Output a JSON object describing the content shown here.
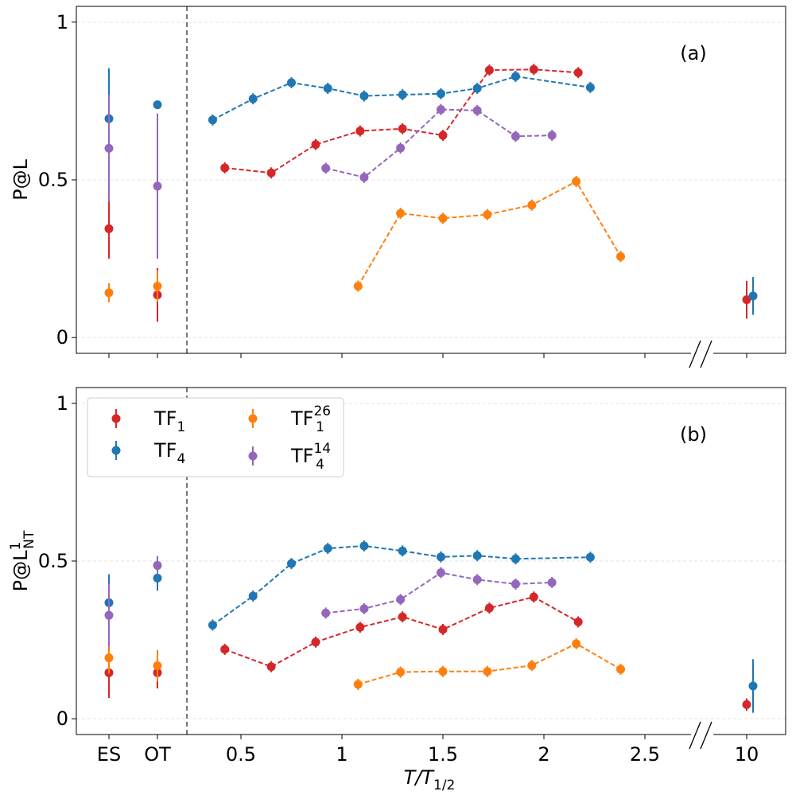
{
  "chart_data": [
    {
      "type": "scatter",
      "panel": "(a)",
      "ylabel": "P@L",
      "xlabel": "",
      "ylim": [
        -0.05,
        1.05
      ],
      "yticks": [
        0,
        0.5,
        1
      ],
      "ytick_labels": [
        "0",
        "0.5",
        "1"
      ],
      "x_tick_positions": [
        "ES",
        "OT",
        0.5,
        1,
        1.5,
        2,
        2.5,
        10
      ],
      "grid": true,
      "series": [
        {
          "name": "TF_1",
          "color": "#d62728",
          "baselines": [
            {
              "x": "ES",
              "y": 0.345,
              "yerr": 0.095
            },
            {
              "x": "OT",
              "y": 0.135,
              "yerr": 0.085
            }
          ],
          "curve": [
            [
              0.42,
              0.538
            ],
            [
              0.65,
              0.522
            ],
            [
              0.87,
              0.612
            ],
            [
              1.09,
              0.655
            ],
            [
              1.3,
              0.662
            ],
            [
              1.5,
              0.641
            ],
            [
              1.73,
              0.848
            ],
            [
              1.95,
              0.85
            ],
            [
              2.17,
              0.84
            ]
          ],
          "far": {
            "x": 10,
            "y": 0.12,
            "yerr": 0.06
          }
        },
        {
          "name": "TF_4",
          "color": "#1f77b4",
          "baselines": [
            {
              "x": "ES",
              "y": 0.694,
              "yerr": 0.16
            },
            {
              "x": "OT",
              "y": 0.738,
              "yerr": 0
            }
          ],
          "curve": [
            [
              0.36,
              0.69
            ],
            [
              0.56,
              0.757
            ],
            [
              0.75,
              0.808
            ],
            [
              0.93,
              0.79
            ],
            [
              1.11,
              0.766
            ],
            [
              1.3,
              0.77
            ],
            [
              1.49,
              0.773
            ],
            [
              1.67,
              0.79
            ],
            [
              1.86,
              0.828
            ],
            [
              2.23,
              0.793
            ]
          ],
          "far": {
            "x": 10,
            "y": 0.132,
            "yerr": 0.06
          }
        },
        {
          "name": "TF_1^26",
          "color": "#ff7f0e",
          "baselines": [
            {
              "x": "ES",
              "y": 0.142,
              "yerr": 0.03
            },
            {
              "x": "OT",
              "y": 0.163,
              "yerr": 0.05
            }
          ],
          "curve": [
            [
              1.08,
              0.163
            ],
            [
              1.29,
              0.394
            ],
            [
              1.5,
              0.378
            ],
            [
              1.72,
              0.39
            ],
            [
              1.94,
              0.42
            ],
            [
              2.16,
              0.495
            ],
            [
              2.38,
              0.257
            ]
          ],
          "far": null
        },
        {
          "name": "TF_4^14",
          "color": "#9467bd",
          "baselines": [
            {
              "x": "ES",
              "y": 0.6,
              "yerr": 0.17
            },
            {
              "x": "OT",
              "y": 0.48,
              "yerr": 0.23
            }
          ],
          "curve": [
            [
              0.92,
              0.537
            ],
            [
              1.11,
              0.508
            ],
            [
              1.29,
              0.601
            ],
            [
              1.49,
              0.723
            ],
            [
              1.67,
              0.72
            ],
            [
              1.86,
              0.638
            ],
            [
              2.04,
              0.641
            ]
          ],
          "far": null
        }
      ]
    },
    {
      "type": "scatter",
      "panel": "(b)",
      "ylabel": "P@L",
      "ylabel_sup": "1",
      "ylabel_sub": "NT",
      "xlabel": "T/T",
      "xlabel_sub": "1/2",
      "ylim": [
        -0.05,
        1.05
      ],
      "yticks": [
        0,
        0.5,
        1
      ],
      "ytick_labels": [
        "0",
        "0.5",
        "1"
      ],
      "xtick_labels": [
        "ES",
        "OT",
        "0.5",
        "1",
        "1.5",
        "2",
        "2.5",
        "10"
      ],
      "grid": true,
      "legend": {
        "placement": "top-left",
        "entries": [
          {
            "base": "TF",
            "sub": "1",
            "sup": "",
            "color": "#d62728"
          },
          {
            "base": "TF",
            "sub": "4",
            "sup": "",
            "color": "#1f77b4"
          },
          {
            "base": "TF",
            "sub": "1",
            "sup": "26",
            "color": "#ff7f0e"
          },
          {
            "base": "TF",
            "sub": "4",
            "sup": "14",
            "color": "#9467bd"
          }
        ]
      },
      "series": [
        {
          "name": "TF_1",
          "color": "#d62728",
          "baselines": [
            {
              "x": "ES",
              "y": 0.146,
              "yerr": 0.08
            },
            {
              "x": "OT",
              "y": 0.146,
              "yerr": 0.05
            }
          ],
          "curve": [
            [
              0.42,
              0.22
            ],
            [
              0.65,
              0.165
            ],
            [
              0.87,
              0.243
            ],
            [
              1.09,
              0.29
            ],
            [
              1.3,
              0.323
            ],
            [
              1.5,
              0.283
            ],
            [
              1.73,
              0.351
            ],
            [
              1.95,
              0.386
            ],
            [
              2.17,
              0.307
            ]
          ],
          "far": {
            "x": 10,
            "y": 0.045,
            "yerr": 0.02
          }
        },
        {
          "name": "TF_4",
          "color": "#1f77b4",
          "baselines": [
            {
              "x": "ES",
              "y": 0.368,
              "yerr": 0.09
            },
            {
              "x": "OT",
              "y": 0.446,
              "yerr": 0.04
            }
          ],
          "curve": [
            [
              0.36,
              0.297
            ],
            [
              0.56,
              0.389
            ],
            [
              0.75,
              0.492
            ],
            [
              0.93,
              0.54
            ],
            [
              1.11,
              0.548
            ],
            [
              1.3,
              0.532
            ],
            [
              1.49,
              0.513
            ],
            [
              1.67,
              0.517
            ],
            [
              1.86,
              0.507
            ],
            [
              2.23,
              0.512
            ]
          ],
          "far": {
            "x": 10,
            "y": 0.104,
            "yerr": 0.085
          }
        },
        {
          "name": "TF_1^26",
          "color": "#ff7f0e",
          "baselines": [
            {
              "x": "ES",
              "y": 0.193,
              "yerr": 0.05
            },
            {
              "x": "OT",
              "y": 0.168,
              "yerr": 0.05
            }
          ],
          "curve": [
            [
              1.08,
              0.109
            ],
            [
              1.29,
              0.148
            ],
            [
              1.5,
              0.15
            ],
            [
              1.72,
              0.15
            ],
            [
              1.94,
              0.169
            ],
            [
              2.16,
              0.238
            ],
            [
              2.38,
              0.157
            ]
          ],
          "far": null
        },
        {
          "name": "TF_4^14",
          "color": "#9467bd",
          "baselines": [
            {
              "x": "ES",
              "y": 0.328,
              "yerr": 0.1
            },
            {
              "x": "OT",
              "y": 0.486,
              "yerr": 0.03
            }
          ],
          "curve": [
            [
              0.92,
              0.335
            ],
            [
              1.11,
              0.349
            ],
            [
              1.29,
              0.378
            ],
            [
              1.49,
              0.463
            ],
            [
              1.67,
              0.441
            ],
            [
              1.86,
              0.427
            ],
            [
              2.04,
              0.432
            ]
          ],
          "far": null
        }
      ]
    }
  ]
}
